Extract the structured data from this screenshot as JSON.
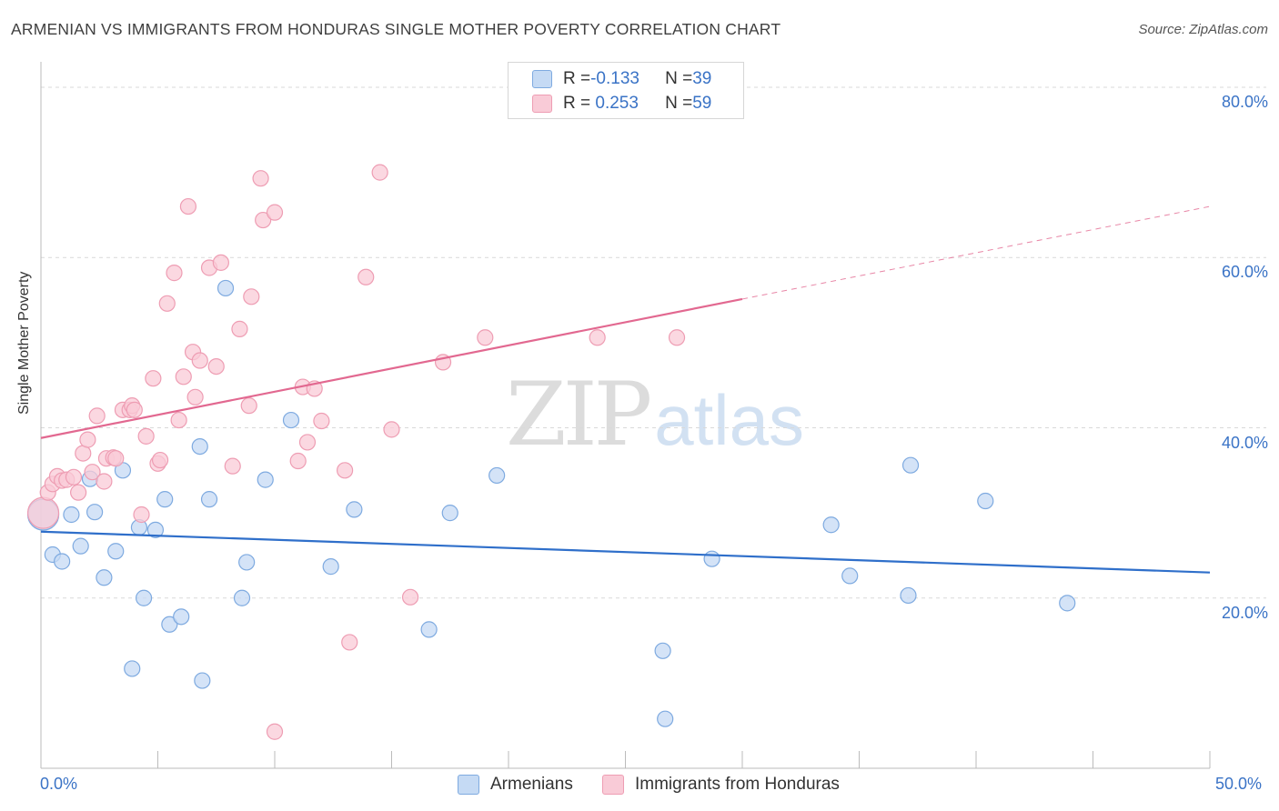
{
  "title": "ARMENIAN VS IMMIGRANTS FROM HONDURAS SINGLE MOTHER POVERTY CORRELATION CHART",
  "source": "Source: ZipAtlas.com",
  "watermark": {
    "zip": "ZIP",
    "atlas": "atlas"
  },
  "legend_stats": [
    {
      "r_label": "R = ",
      "r_value": "-0.133",
      "n_label": "N = ",
      "n_value": "39"
    },
    {
      "r_label": "R = ",
      "r_value": " 0.253",
      "n_label": "N = ",
      "n_value": "59"
    }
  ],
  "colors": {
    "armenians_fill": "#c5daf4",
    "armenians_stroke": "#7eaae0",
    "armenians_line": "#2f6fca",
    "honduras_fill": "#f9cbd7",
    "honduras_stroke": "#ee9db3",
    "honduras_line": "#e26890",
    "axis_text": "#3a73c6",
    "grid": "#d9d9d9"
  },
  "chart_data": {
    "type": "scatter",
    "title": "ARMENIAN VS IMMIGRANTS FROM HONDURAS SINGLE MOTHER POVERTY CORRELATION CHART",
    "xlabel": "",
    "ylabel": "Single Mother Poverty",
    "xlim": [
      0,
      50
    ],
    "ylim": [
      0,
      80
    ],
    "x_tick_labels": [
      "0.0%",
      "50.0%"
    ],
    "y_tick_labels": [
      "20.0%",
      "40.0%",
      "60.0%",
      "80.0%"
    ],
    "y_ticks": [
      20,
      40,
      60,
      80
    ],
    "grid": true,
    "legend_placement": "bottom",
    "series": [
      {
        "name": "Armenians",
        "trend": {
          "x": [
            0,
            50
          ],
          "y": [
            27.8,
            23.0
          ],
          "dashed_from": null
        },
        "points": [
          {
            "x": 0.1,
            "y": 29.8,
            "big": true
          },
          {
            "x": 0.5,
            "y": 25.1
          },
          {
            "x": 0.9,
            "y": 24.3
          },
          {
            "x": 1.3,
            "y": 29.8
          },
          {
            "x": 1.7,
            "y": 26.1
          },
          {
            "x": 2.1,
            "y": 34.0
          },
          {
            "x": 2.3,
            "y": 30.1
          },
          {
            "x": 2.7,
            "y": 22.4
          },
          {
            "x": 3.2,
            "y": 25.5
          },
          {
            "x": 3.5,
            "y": 35.0
          },
          {
            "x": 3.9,
            "y": 11.7
          },
          {
            "x": 4.2,
            "y": 28.3
          },
          {
            "x": 4.4,
            "y": 20.0
          },
          {
            "x": 4.9,
            "y": 28.0
          },
          {
            "x": 5.3,
            "y": 31.6
          },
          {
            "x": 5.5,
            "y": 16.9
          },
          {
            "x": 6.0,
            "y": 17.8
          },
          {
            "x": 6.9,
            "y": 10.3
          },
          {
            "x": 6.8,
            "y": 37.8
          },
          {
            "x": 7.2,
            "y": 31.6
          },
          {
            "x": 7.9,
            "y": 56.4
          },
          {
            "x": 8.6,
            "y": 20.0
          },
          {
            "x": 8.8,
            "y": 24.2
          },
          {
            "x": 9.6,
            "y": 33.9
          },
          {
            "x": 10.7,
            "y": 40.9
          },
          {
            "x": 12.4,
            "y": 23.7
          },
          {
            "x": 13.4,
            "y": 30.4
          },
          {
            "x": 16.6,
            "y": 16.3
          },
          {
            "x": 17.5,
            "y": 30.0
          },
          {
            "x": 19.5,
            "y": 34.4
          },
          {
            "x": 26.6,
            "y": 13.8
          },
          {
            "x": 26.7,
            "y": 5.8
          },
          {
            "x": 28.7,
            "y": 24.6
          },
          {
            "x": 33.8,
            "y": 28.6
          },
          {
            "x": 34.6,
            "y": 22.6
          },
          {
            "x": 37.1,
            "y": 20.3
          },
          {
            "x": 37.2,
            "y": 35.6
          },
          {
            "x": 40.4,
            "y": 31.4
          },
          {
            "x": 43.9,
            "y": 19.4
          }
        ]
      },
      {
        "name": "Immigrants from Honduras",
        "trend": {
          "x": [
            0,
            50
          ],
          "y": [
            38.8,
            66.0
          ],
          "solid_to_x": 30
        },
        "points": [
          {
            "x": 0.1,
            "y": 30.0,
            "big": true
          },
          {
            "x": 0.3,
            "y": 32.4
          },
          {
            "x": 0.5,
            "y": 33.4
          },
          {
            "x": 0.7,
            "y": 34.3
          },
          {
            "x": 0.9,
            "y": 33.8
          },
          {
            "x": 1.1,
            "y": 33.9
          },
          {
            "x": 1.4,
            "y": 34.2
          },
          {
            "x": 1.6,
            "y": 32.4
          },
          {
            "x": 1.8,
            "y": 37.0
          },
          {
            "x": 2.0,
            "y": 38.6
          },
          {
            "x": 2.2,
            "y": 34.8
          },
          {
            "x": 2.4,
            "y": 41.4
          },
          {
            "x": 2.7,
            "y": 33.7
          },
          {
            "x": 2.8,
            "y": 36.4
          },
          {
            "x": 3.1,
            "y": 36.5
          },
          {
            "x": 3.2,
            "y": 36.4
          },
          {
            "x": 3.5,
            "y": 42.1
          },
          {
            "x": 3.8,
            "y": 42.1
          },
          {
            "x": 3.9,
            "y": 42.6
          },
          {
            "x": 4.0,
            "y": 42.1
          },
          {
            "x": 4.3,
            "y": 29.8
          },
          {
            "x": 4.5,
            "y": 39.0
          },
          {
            "x": 4.8,
            "y": 45.8
          },
          {
            "x": 5.0,
            "y": 35.8
          },
          {
            "x": 5.1,
            "y": 36.2
          },
          {
            "x": 5.4,
            "y": 54.6
          },
          {
            "x": 5.7,
            "y": 58.2
          },
          {
            "x": 5.9,
            "y": 40.9
          },
          {
            "x": 6.1,
            "y": 46.0
          },
          {
            "x": 6.3,
            "y": 66.0
          },
          {
            "x": 6.5,
            "y": 48.9
          },
          {
            "x": 6.6,
            "y": 43.6
          },
          {
            "x": 6.8,
            "y": 47.9
          },
          {
            "x": 7.2,
            "y": 58.8
          },
          {
            "x": 7.5,
            "y": 47.2
          },
          {
            "x": 7.7,
            "y": 59.4
          },
          {
            "x": 8.2,
            "y": 35.5
          },
          {
            "x": 8.5,
            "y": 51.6
          },
          {
            "x": 8.9,
            "y": 42.6
          },
          {
            "x": 9.0,
            "y": 55.4
          },
          {
            "x": 9.4,
            "y": 69.3
          },
          {
            "x": 9.5,
            "y": 64.4
          },
          {
            "x": 10.0,
            "y": 65.3
          },
          {
            "x": 11.0,
            "y": 36.1
          },
          {
            "x": 11.2,
            "y": 44.8
          },
          {
            "x": 11.4,
            "y": 38.3
          },
          {
            "x": 11.7,
            "y": 44.6
          },
          {
            "x": 12.0,
            "y": 40.8
          },
          {
            "x": 13.0,
            "y": 35.0
          },
          {
            "x": 13.2,
            "y": 14.8
          },
          {
            "x": 13.9,
            "y": 57.7
          },
          {
            "x": 14.5,
            "y": 70.0
          },
          {
            "x": 15.0,
            "y": 39.8
          },
          {
            "x": 15.8,
            "y": 20.1
          },
          {
            "x": 17.2,
            "y": 47.7
          },
          {
            "x": 19.0,
            "y": 50.6
          },
          {
            "x": 23.8,
            "y": 50.6
          },
          {
            "x": 27.2,
            "y": 50.6
          },
          {
            "x": 10.0,
            "y": 4.3
          }
        ]
      }
    ]
  },
  "bottom_legend": [
    "Armenians",
    "Immigrants from Honduras"
  ]
}
